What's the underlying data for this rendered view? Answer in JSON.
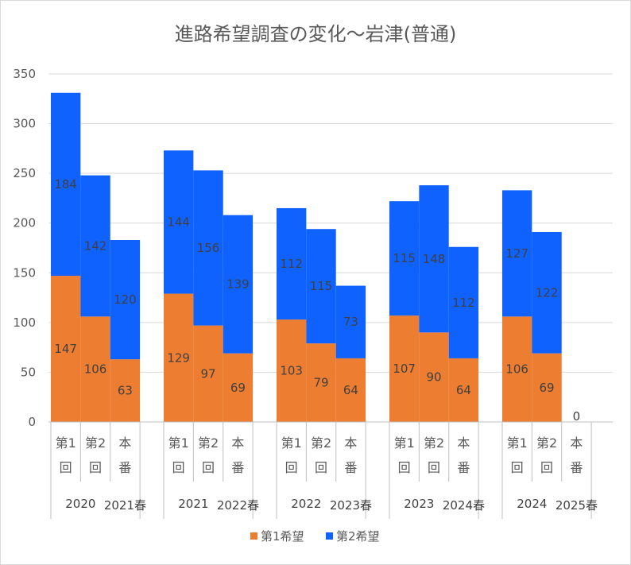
{
  "chart_data": {
    "type": "bar",
    "stacked": true,
    "title": "進路希望調査の変化～岩津(普通)",
    "xlabel": "",
    "ylabel": "",
    "ylim": [
      0,
      350
    ],
    "yticks": [
      0,
      50,
      100,
      150,
      200,
      250,
      300,
      350
    ],
    "grid": true,
    "legend_position": "bottom",
    "groups": [
      {
        "label": "2020",
        "sublabel": "2021春"
      },
      {
        "label": "2021",
        "sublabel": "2022春"
      },
      {
        "label": "2022",
        "sublabel": "2023春"
      },
      {
        "label": "2023",
        "sublabel": "2024春"
      },
      {
        "label": "2024",
        "sublabel": "2025春"
      }
    ],
    "categories": [
      [
        "第1",
        "回"
      ],
      [
        "第2",
        "回"
      ],
      [
        "本",
        "番"
      ],
      [
        "第1",
        "回"
      ],
      [
        "第2",
        "回"
      ],
      [
        "本",
        "番"
      ],
      [
        "第1",
        "回"
      ],
      [
        "第2",
        "回"
      ],
      [
        "本",
        "番"
      ],
      [
        "第1",
        "回"
      ],
      [
        "第2",
        "回"
      ],
      [
        "本",
        "番"
      ],
      [
        "第1",
        "回"
      ],
      [
        "第2",
        "回"
      ],
      [
        "本",
        "番"
      ]
    ],
    "series": [
      {
        "name": "第1希望",
        "color": "#ED7D31",
        "values": [
          147,
          106,
          63,
          129,
          97,
          69,
          103,
          79,
          64,
          107,
          90,
          64,
          106,
          69,
          0
        ]
      },
      {
        "name": "第2希望",
        "color": "#0F62FE",
        "values": [
          184,
          142,
          120,
          144,
          156,
          139,
          112,
          115,
          73,
          115,
          148,
          112,
          127,
          122,
          null
        ]
      }
    ]
  }
}
